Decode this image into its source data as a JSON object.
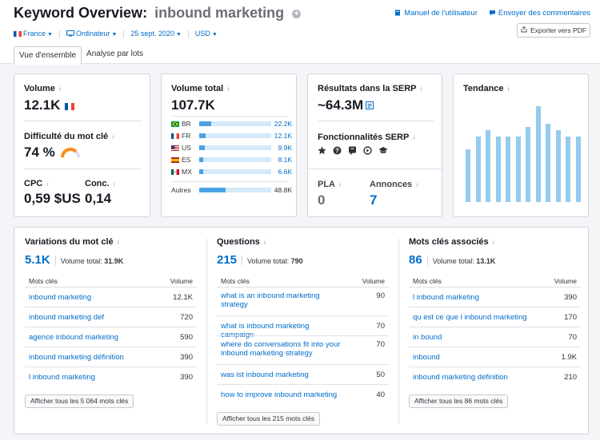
{
  "header": {
    "title": "Keyword Overview:",
    "keyword": "inbound marketing",
    "links": [
      "Manuel de l'utilisateur",
      "Envoyer des commentaires"
    ],
    "filters": [
      "France",
      "Ordinateur",
      "25 sept. 2020",
      "USD"
    ],
    "export_label": "Exporter vers PDF",
    "tabs": [
      "Vue d'ensemble",
      "Analyse par lots"
    ]
  },
  "volume": {
    "label": "Volume",
    "value": "12.1K"
  },
  "difficulty": {
    "label": "Difficulté du mot clé",
    "value": "74 %",
    "level": 0.74
  },
  "cpc": {
    "label": "CPC",
    "value": "0,59 $US"
  },
  "conc": {
    "label": "Conc.",
    "value": "0,14"
  },
  "total_volume": {
    "label": "Volume total",
    "value": "107.7K",
    "countries": [
      {
        "code": "BR",
        "value": "22.2K",
        "share": 0.17
      },
      {
        "code": "FR",
        "value": "12.1K",
        "share": 0.09
      },
      {
        "code": "US",
        "value": "9.9K",
        "share": 0.075
      },
      {
        "code": "ES",
        "value": "8.1K",
        "share": 0.06
      },
      {
        "code": "MX",
        "value": "6.6K",
        "share": 0.05
      }
    ],
    "others": {
      "label": "Autres",
      "value": "48.8K",
      "share": 0.37
    }
  },
  "serp": {
    "label": "Résultats dans la SERP",
    "value": "~64.3M",
    "features_label": "Fonctionnalités SERP",
    "feature_icons": [
      "star-icon",
      "question-icon",
      "quote-icon",
      "video-icon",
      "graduation-icon"
    ],
    "pla_label": "PLA",
    "pla_value": "0",
    "ads_label": "Annonces",
    "ads_value": "7"
  },
  "trend": {
    "label": "Tendance",
    "values": [
      0.55,
      0.68,
      0.75,
      0.68,
      0.68,
      0.68,
      0.78,
      1.0,
      0.82,
      0.75,
      0.68,
      0.68
    ]
  },
  "variations": {
    "title": "Variations du mot clé",
    "count": "5.1K",
    "total_label": "Volume total:",
    "total": "31.9K",
    "col_kw": "Mots clés",
    "col_vol": "Volume",
    "rows": [
      {
        "kw": "inbound marketing",
        "vol": "12.1K"
      },
      {
        "kw": "inbound marketing def",
        "vol": "720"
      },
      {
        "kw": "agence inbound marketing",
        "vol": "590"
      },
      {
        "kw": "inbound marketing définition",
        "vol": "390"
      },
      {
        "kw": "l inbound marketing",
        "vol": "390"
      }
    ],
    "button": "Afficher tous les 5 064 mots clés"
  },
  "questions": {
    "title": "Questions",
    "count": "215",
    "total_label": "Volume total:",
    "total": "790",
    "col_kw": "Mots clés",
    "col_vol": "Volume",
    "rows": [
      {
        "kw": "what is an inbound marketing strategy",
        "vol": "90"
      },
      {
        "kw": "what is inbound marketing campaign",
        "vol": "70"
      },
      {
        "kw": "where do conversations fit into your inbound marketing strategy",
        "vol": "70"
      },
      {
        "kw": "was ist inbound marketing",
        "vol": "50"
      },
      {
        "kw": "how to improve inbound marketing",
        "vol": "40"
      }
    ],
    "button": "Afficher tous les 215 mots clés"
  },
  "related": {
    "title": "Mots clés associés",
    "count": "86",
    "total_label": "Volume total:",
    "total": "13.1K",
    "col_kw": "Mots clés",
    "col_vol": "Volume",
    "rows": [
      {
        "kw": "l inbound marketing",
        "vol": "390"
      },
      {
        "kw": "qu est ce que l inbound marketing",
        "vol": "170"
      },
      {
        "kw": "in bound",
        "vol": "70"
      },
      {
        "kw": "inbound",
        "vol": "1.9K"
      },
      {
        "kw": "inbound marketing definition",
        "vol": "210"
      }
    ],
    "button": "Afficher tous les 86 mots clés"
  }
}
